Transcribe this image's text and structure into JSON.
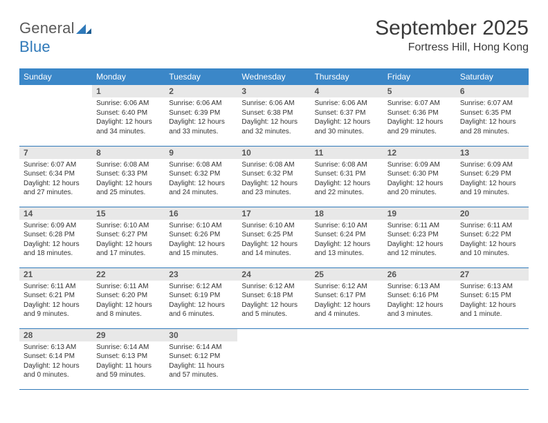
{
  "logo": {
    "part1": "General",
    "part2": "Blue"
  },
  "header": {
    "month_title": "September 2025",
    "location": "Fortress Hill, Hong Kong"
  },
  "colors": {
    "header_bg": "#3b87c8",
    "rule": "#2f79b9",
    "daynum_bg": "#e8e8e8"
  },
  "weekdays": [
    "Sunday",
    "Monday",
    "Tuesday",
    "Wednesday",
    "Thursday",
    "Friday",
    "Saturday"
  ],
  "weeks": [
    [
      {
        "n": "",
        "sr": "",
        "ss": "",
        "dl": ""
      },
      {
        "n": "1",
        "sr": "Sunrise: 6:06 AM",
        "ss": "Sunset: 6:40 PM",
        "dl": "Daylight: 12 hours and 34 minutes."
      },
      {
        "n": "2",
        "sr": "Sunrise: 6:06 AM",
        "ss": "Sunset: 6:39 PM",
        "dl": "Daylight: 12 hours and 33 minutes."
      },
      {
        "n": "3",
        "sr": "Sunrise: 6:06 AM",
        "ss": "Sunset: 6:38 PM",
        "dl": "Daylight: 12 hours and 32 minutes."
      },
      {
        "n": "4",
        "sr": "Sunrise: 6:06 AM",
        "ss": "Sunset: 6:37 PM",
        "dl": "Daylight: 12 hours and 30 minutes."
      },
      {
        "n": "5",
        "sr": "Sunrise: 6:07 AM",
        "ss": "Sunset: 6:36 PM",
        "dl": "Daylight: 12 hours and 29 minutes."
      },
      {
        "n": "6",
        "sr": "Sunrise: 6:07 AM",
        "ss": "Sunset: 6:35 PM",
        "dl": "Daylight: 12 hours and 28 minutes."
      }
    ],
    [
      {
        "n": "7",
        "sr": "Sunrise: 6:07 AM",
        "ss": "Sunset: 6:34 PM",
        "dl": "Daylight: 12 hours and 27 minutes."
      },
      {
        "n": "8",
        "sr": "Sunrise: 6:08 AM",
        "ss": "Sunset: 6:33 PM",
        "dl": "Daylight: 12 hours and 25 minutes."
      },
      {
        "n": "9",
        "sr": "Sunrise: 6:08 AM",
        "ss": "Sunset: 6:32 PM",
        "dl": "Daylight: 12 hours and 24 minutes."
      },
      {
        "n": "10",
        "sr": "Sunrise: 6:08 AM",
        "ss": "Sunset: 6:32 PM",
        "dl": "Daylight: 12 hours and 23 minutes."
      },
      {
        "n": "11",
        "sr": "Sunrise: 6:08 AM",
        "ss": "Sunset: 6:31 PM",
        "dl": "Daylight: 12 hours and 22 minutes."
      },
      {
        "n": "12",
        "sr": "Sunrise: 6:09 AM",
        "ss": "Sunset: 6:30 PM",
        "dl": "Daylight: 12 hours and 20 minutes."
      },
      {
        "n": "13",
        "sr": "Sunrise: 6:09 AM",
        "ss": "Sunset: 6:29 PM",
        "dl": "Daylight: 12 hours and 19 minutes."
      }
    ],
    [
      {
        "n": "14",
        "sr": "Sunrise: 6:09 AM",
        "ss": "Sunset: 6:28 PM",
        "dl": "Daylight: 12 hours and 18 minutes."
      },
      {
        "n": "15",
        "sr": "Sunrise: 6:10 AM",
        "ss": "Sunset: 6:27 PM",
        "dl": "Daylight: 12 hours and 17 minutes."
      },
      {
        "n": "16",
        "sr": "Sunrise: 6:10 AM",
        "ss": "Sunset: 6:26 PM",
        "dl": "Daylight: 12 hours and 15 minutes."
      },
      {
        "n": "17",
        "sr": "Sunrise: 6:10 AM",
        "ss": "Sunset: 6:25 PM",
        "dl": "Daylight: 12 hours and 14 minutes."
      },
      {
        "n": "18",
        "sr": "Sunrise: 6:10 AM",
        "ss": "Sunset: 6:24 PM",
        "dl": "Daylight: 12 hours and 13 minutes."
      },
      {
        "n": "19",
        "sr": "Sunrise: 6:11 AM",
        "ss": "Sunset: 6:23 PM",
        "dl": "Daylight: 12 hours and 12 minutes."
      },
      {
        "n": "20",
        "sr": "Sunrise: 6:11 AM",
        "ss": "Sunset: 6:22 PM",
        "dl": "Daylight: 12 hours and 10 minutes."
      }
    ],
    [
      {
        "n": "21",
        "sr": "Sunrise: 6:11 AM",
        "ss": "Sunset: 6:21 PM",
        "dl": "Daylight: 12 hours and 9 minutes."
      },
      {
        "n": "22",
        "sr": "Sunrise: 6:11 AM",
        "ss": "Sunset: 6:20 PM",
        "dl": "Daylight: 12 hours and 8 minutes."
      },
      {
        "n": "23",
        "sr": "Sunrise: 6:12 AM",
        "ss": "Sunset: 6:19 PM",
        "dl": "Daylight: 12 hours and 6 minutes."
      },
      {
        "n": "24",
        "sr": "Sunrise: 6:12 AM",
        "ss": "Sunset: 6:18 PM",
        "dl": "Daylight: 12 hours and 5 minutes."
      },
      {
        "n": "25",
        "sr": "Sunrise: 6:12 AM",
        "ss": "Sunset: 6:17 PM",
        "dl": "Daylight: 12 hours and 4 minutes."
      },
      {
        "n": "26",
        "sr": "Sunrise: 6:13 AM",
        "ss": "Sunset: 6:16 PM",
        "dl": "Daylight: 12 hours and 3 minutes."
      },
      {
        "n": "27",
        "sr": "Sunrise: 6:13 AM",
        "ss": "Sunset: 6:15 PM",
        "dl": "Daylight: 12 hours and 1 minute."
      }
    ],
    [
      {
        "n": "28",
        "sr": "Sunrise: 6:13 AM",
        "ss": "Sunset: 6:14 PM",
        "dl": "Daylight: 12 hours and 0 minutes."
      },
      {
        "n": "29",
        "sr": "Sunrise: 6:14 AM",
        "ss": "Sunset: 6:13 PM",
        "dl": "Daylight: 11 hours and 59 minutes."
      },
      {
        "n": "30",
        "sr": "Sunrise: 6:14 AM",
        "ss": "Sunset: 6:12 PM",
        "dl": "Daylight: 11 hours and 57 minutes."
      },
      {
        "n": "",
        "sr": "",
        "ss": "",
        "dl": ""
      },
      {
        "n": "",
        "sr": "",
        "ss": "",
        "dl": ""
      },
      {
        "n": "",
        "sr": "",
        "ss": "",
        "dl": ""
      },
      {
        "n": "",
        "sr": "",
        "ss": "",
        "dl": ""
      }
    ]
  ]
}
